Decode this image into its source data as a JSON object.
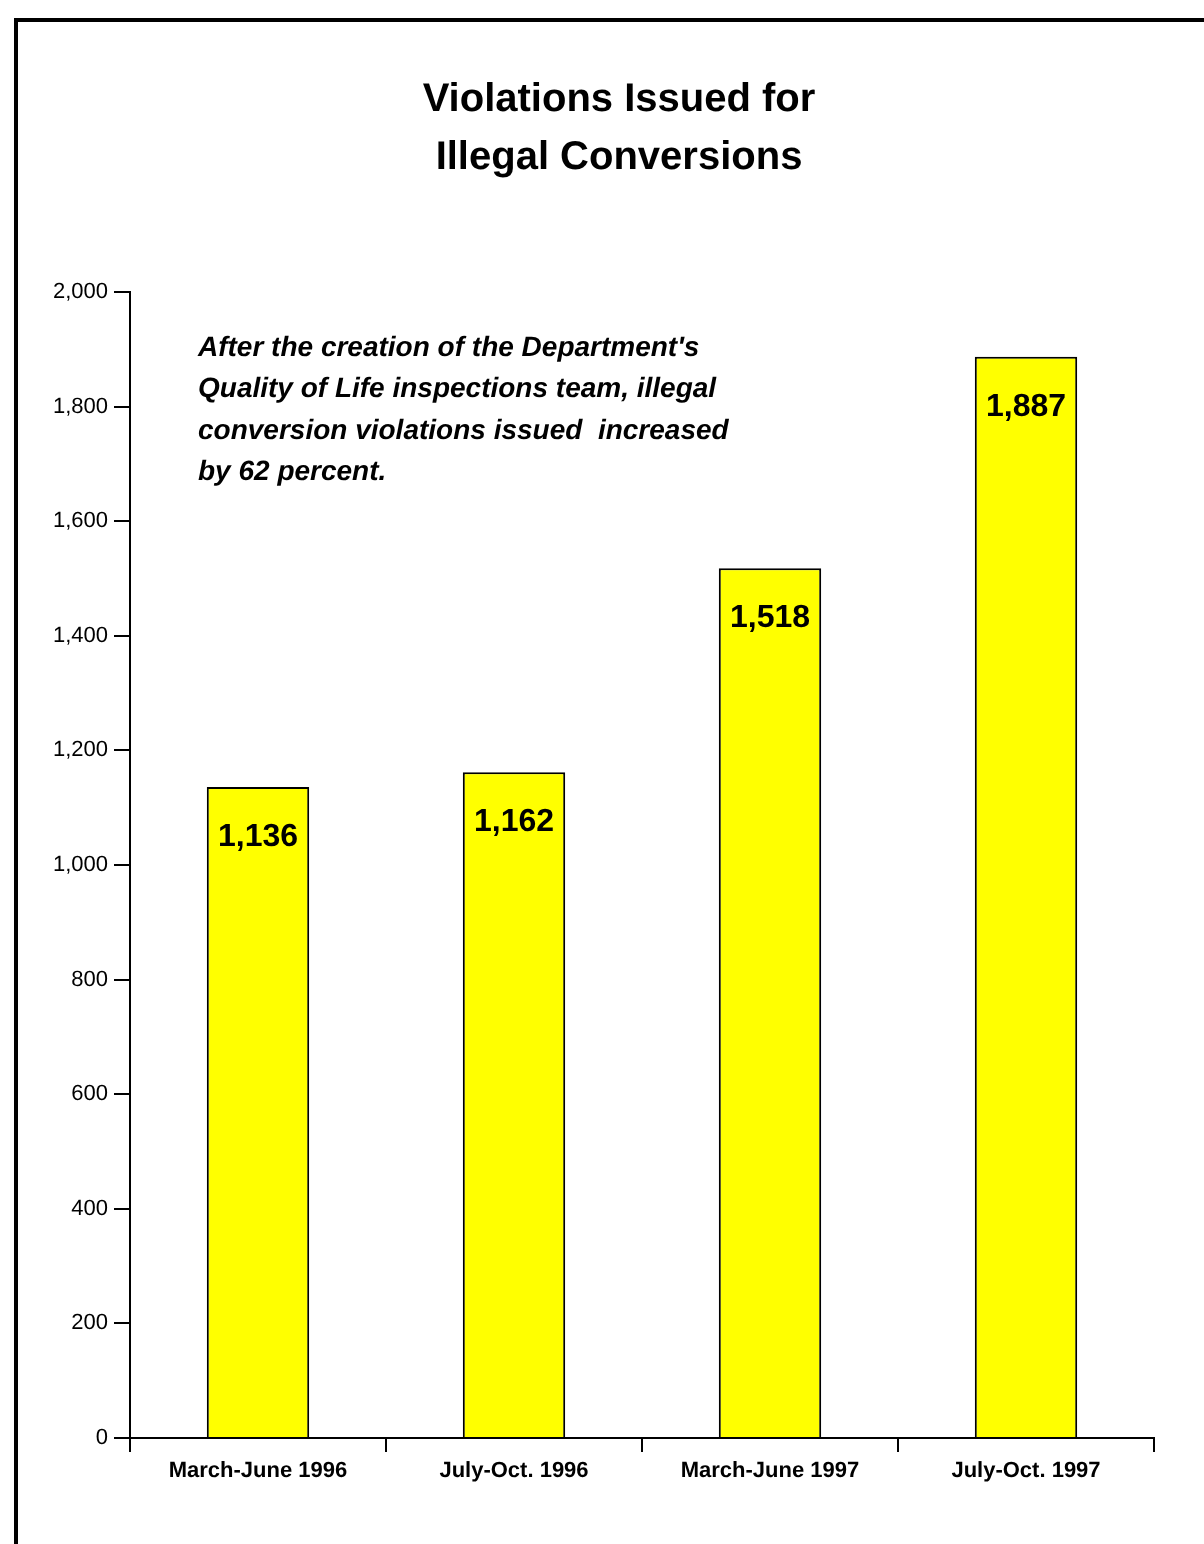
{
  "chart_data": {
    "type": "bar",
    "title": "Violations Issued for\nIllegal Conversions",
    "categories": [
      "March-June 1996",
      "July-Oct. 1996",
      "March-June 1997",
      "July-Oct. 1997"
    ],
    "values": [
      1136,
      1162,
      1518,
      1887
    ],
    "color": "#ffff00",
    "value_labels": [
      "1,136",
      "1,162",
      "1,518",
      "1,887"
    ],
    "ylim": [
      0,
      2000
    ],
    "yticks": [
      0,
      200,
      400,
      600,
      800,
      {
        "value": 1000,
        "label": "1,000"
      },
      {
        "value": 1200,
        "label": "1,200"
      },
      {
        "value": 1400,
        "label": "1,400"
      },
      {
        "value": 1600,
        "label": "1,600"
      },
      {
        "value": 1800,
        "label": "1,800"
      },
      {
        "value": 2000,
        "label": "2,000"
      }
    ],
    "annotations": [
      "After the creation of the Department's\nQuality of Life inspections team, illegal\nconversion violations issued  increased\nby 62 percent."
    ]
  }
}
